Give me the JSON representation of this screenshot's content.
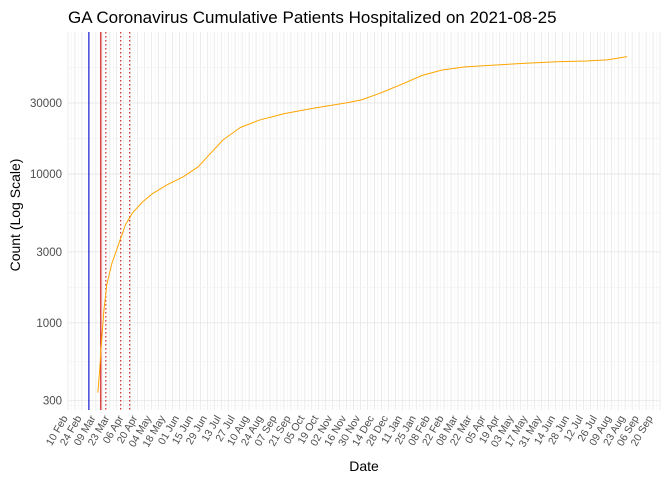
{
  "chart_data": {
    "type": "line",
    "title": "GA Coronavirus Cumulative Patients Hospitalized on 2021-08-25",
    "xlabel": "Date",
    "ylabel": "Count (Log Scale)",
    "y_scale": "log",
    "ylim": [
      260,
      90000
    ],
    "y_ticks": [
      300,
      1000,
      3000,
      10000,
      30000
    ],
    "y_tick_labels": [
      "300",
      "1000",
      "3000",
      "10000",
      "30000"
    ],
    "x_range": [
      "2020-02-10",
      "2021-09-27"
    ],
    "x_tick_labels": [
      "10 Feb",
      "24 Feb",
      "09 Mar",
      "23 Mar",
      "06 Apr",
      "20 Apr",
      "04 May",
      "18 May",
      "01 Jun",
      "15 Jun",
      "29 Jun",
      "13 Jul",
      "27 Jul",
      "10 Aug",
      "24 Aug",
      "07 Sep",
      "21 Sep",
      "05 Oct",
      "19 Oct",
      "02 Nov",
      "16 Nov",
      "30 Nov",
      "14 Dec",
      "28 Dec",
      "11 Jan",
      "25 Jan",
      "08 Feb",
      "22 Feb",
      "08 Mar",
      "22 Mar",
      "05 Apr",
      "19 Apr",
      "03 May",
      "17 May",
      "31 May",
      "14 Jun",
      "28 Jun",
      "12 Jul",
      "26 Jul",
      "09 Aug",
      "23 Aug",
      "06 Sep",
      "20 Sep"
    ],
    "grid": true,
    "vlines": [
      {
        "date": "2020-03-02",
        "color": "#0000cc",
        "style": "solid"
      },
      {
        "date": "2020-03-14",
        "color": "#cc0000",
        "style": "solid"
      },
      {
        "date": "2020-03-19",
        "color": "#cc0000",
        "style": "dotted"
      },
      {
        "date": "2020-04-03",
        "color": "#cc0000",
        "style": "dotted"
      },
      {
        "date": "2020-04-12",
        "color": "#cc0000",
        "style": "dotted"
      }
    ],
    "series": [
      {
        "color": "#ffa500",
        "points": [
          [
            "2020-03-11",
            340
          ],
          [
            "2020-03-13",
            500
          ],
          [
            "2020-03-15",
            800
          ],
          [
            "2020-03-17",
            1200
          ],
          [
            "2020-03-20",
            1800
          ],
          [
            "2020-03-25",
            2500
          ],
          [
            "2020-04-01",
            3400
          ],
          [
            "2020-04-08",
            4600
          ],
          [
            "2020-04-15",
            5500
          ],
          [
            "2020-04-25",
            6500
          ],
          [
            "2020-05-05",
            7400
          ],
          [
            "2020-05-20",
            8500
          ],
          [
            "2020-06-05",
            9600
          ],
          [
            "2020-06-20",
            11200
          ],
          [
            "2020-07-01",
            13500
          ],
          [
            "2020-07-15",
            17000
          ],
          [
            "2020-08-01",
            20500
          ],
          [
            "2020-08-20",
            23000
          ],
          [
            "2020-09-15",
            25500
          ],
          [
            "2020-10-15",
            27800
          ],
          [
            "2020-11-15",
            30000
          ],
          [
            "2020-12-01",
            31500
          ],
          [
            "2020-12-20",
            35000
          ],
          [
            "2021-01-10",
            40000
          ],
          [
            "2021-01-31",
            46000
          ],
          [
            "2021-02-20",
            50000
          ],
          [
            "2021-03-15",
            52500
          ],
          [
            "2021-04-15",
            54000
          ],
          [
            "2021-05-15",
            55500
          ],
          [
            "2021-06-15",
            56800
          ],
          [
            "2021-07-15",
            57500
          ],
          [
            "2021-08-05",
            58500
          ],
          [
            "2021-08-25",
            61500
          ]
        ]
      }
    ]
  }
}
